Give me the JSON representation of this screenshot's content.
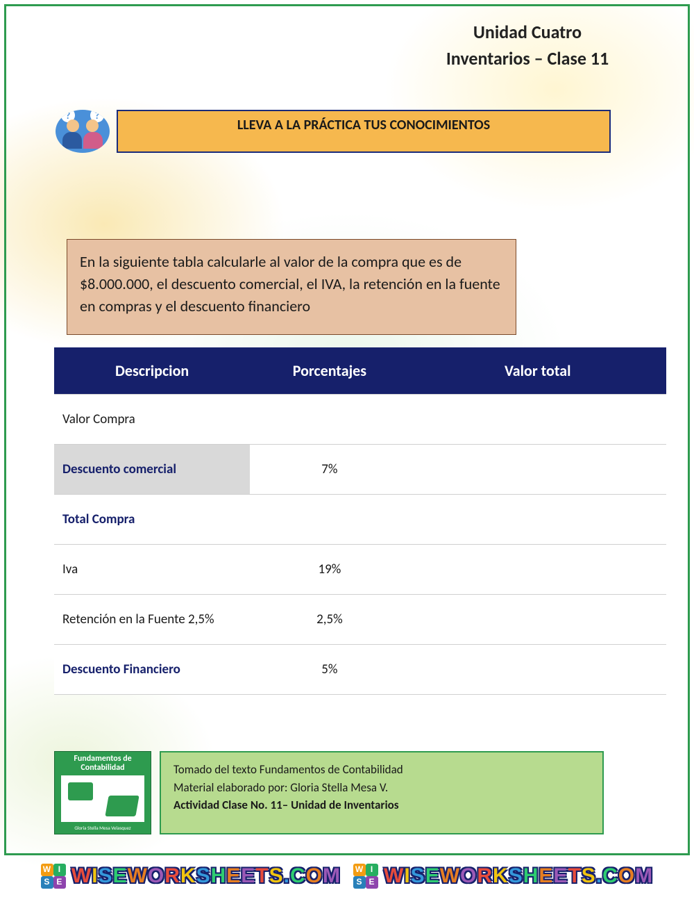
{
  "header": {
    "line1": "Unidad Cuatro",
    "line2": "Inventarios – Clase 11"
  },
  "banner": {
    "title": "LLEVA A LA PRÁCTICA TUS CONOCIMIENTOS",
    "bg_color": "#f6b84e",
    "border_color": "#1a2b7a"
  },
  "instruction": {
    "text": "En la siguiente tabla calcularle al valor de la compra que es de $8.000.000, el descuento comercial, el IVA, la retención en la fuente en compras y el descuento financiero",
    "bg_color": "#e7c1a3",
    "border_color": "#7a4a2a"
  },
  "table": {
    "header_bg": "#16206b",
    "header_fg": "#ffffff",
    "columns": [
      "Descripcion",
      "Porcentajes",
      "Valor total"
    ],
    "rows": [
      {
        "desc": "Valor Compra",
        "pct": "",
        "val": "",
        "bold_navy": false,
        "shaded": false
      },
      {
        "desc": "Descuento comercial",
        "pct": "7%",
        "val": "",
        "bold_navy": true,
        "shaded": true
      },
      {
        "desc": "Total Compra",
        "pct": "",
        "val": "",
        "bold_navy": true,
        "shaded": false
      },
      {
        "desc": "Iva",
        "pct": "19%",
        "val": "",
        "bold_navy": false,
        "shaded": false
      },
      {
        "desc": "Retención en la Fuente 2,5%",
        "pct": "2,5%",
        "val": "",
        "bold_navy": false,
        "shaded": false
      },
      {
        "desc": "Descuento Financiero",
        "pct": "5%",
        "val": "",
        "bold_navy": true,
        "shaded": false
      }
    ]
  },
  "footer_book": {
    "title_line1": "Fundamentos de",
    "title_line2": "Contabilidad",
    "bg_color": "#2e9b4f"
  },
  "footer_text": {
    "line1": "Tomado del texto Fundamentos de Contabilidad",
    "line2": "Material elaborado por: Gloria Stella Mesa V.",
    "line3": "Actividad Clase No. 11– Unidad de Inventarios",
    "bg_color": "#b7db8f",
    "border_color": "#2e9b4f"
  },
  "watermark": {
    "text": "WISEWORKSHEETS.COM",
    "logo_letters": [
      "W",
      "I",
      "S",
      "E"
    ]
  },
  "frame_color": "#2e9b4f"
}
